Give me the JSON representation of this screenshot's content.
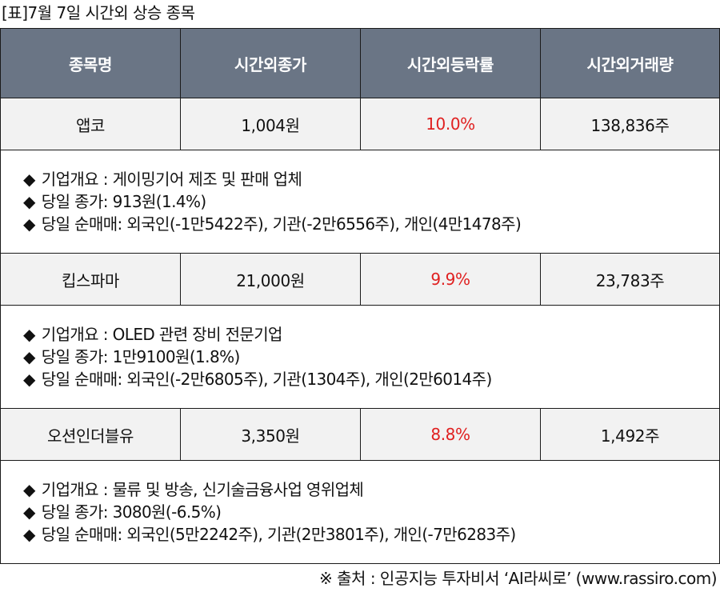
{
  "caption": "[표]7월 7일 시간외 상승 종목",
  "colors": {
    "header_bg": "#6a7585",
    "stock_row_bg": "#f2f2f2",
    "rate_red": "#e02020"
  },
  "bullet_icon": "diamond-icon",
  "bullet_glyph": "◆",
  "headers": [
    "종목명",
    "시간외종가",
    "시간외등락률",
    "시간외거래량"
  ],
  "stocks": [
    {
      "name": "앱코",
      "close": "1,004원",
      "rate": "10.0%",
      "volume": "138,836주",
      "details": [
        "기업개요 : 게이밍기어 제조 및 판매 업체",
        "당일 종가: 913원(1.4%)",
        "당일 순매매: 외국인(-1만5422주), 기관(-2만6556주), 개인(4만1478주)"
      ]
    },
    {
      "name": "킵스파마",
      "close": "21,000원",
      "rate": "9.9%",
      "volume": "23,783주",
      "details": [
        "기업개요 : OLED 관련 장비 전문기업",
        "당일 종가: 1만9100원(1.8%)",
        "당일 순매매: 외국인(-2만6805주), 기관(1304주), 개인(2만6014주)"
      ]
    },
    {
      "name": "오션인더블유",
      "close": "3,350원",
      "rate": "8.8%",
      "volume": "1,492주",
      "details": [
        "기업개요 : 물류 및 방송, 신기술금융사업 영위업체",
        "당일 종가: 3080원(-6.5%)",
        "당일 순매매: 외국인(5만2242주), 기관(2만3801주), 개인(-7만6283주)"
      ]
    }
  ],
  "footer": "※ 출처 : 인공지능 투자비서 ‘AI라씨로’ (www.rassiro.com)"
}
